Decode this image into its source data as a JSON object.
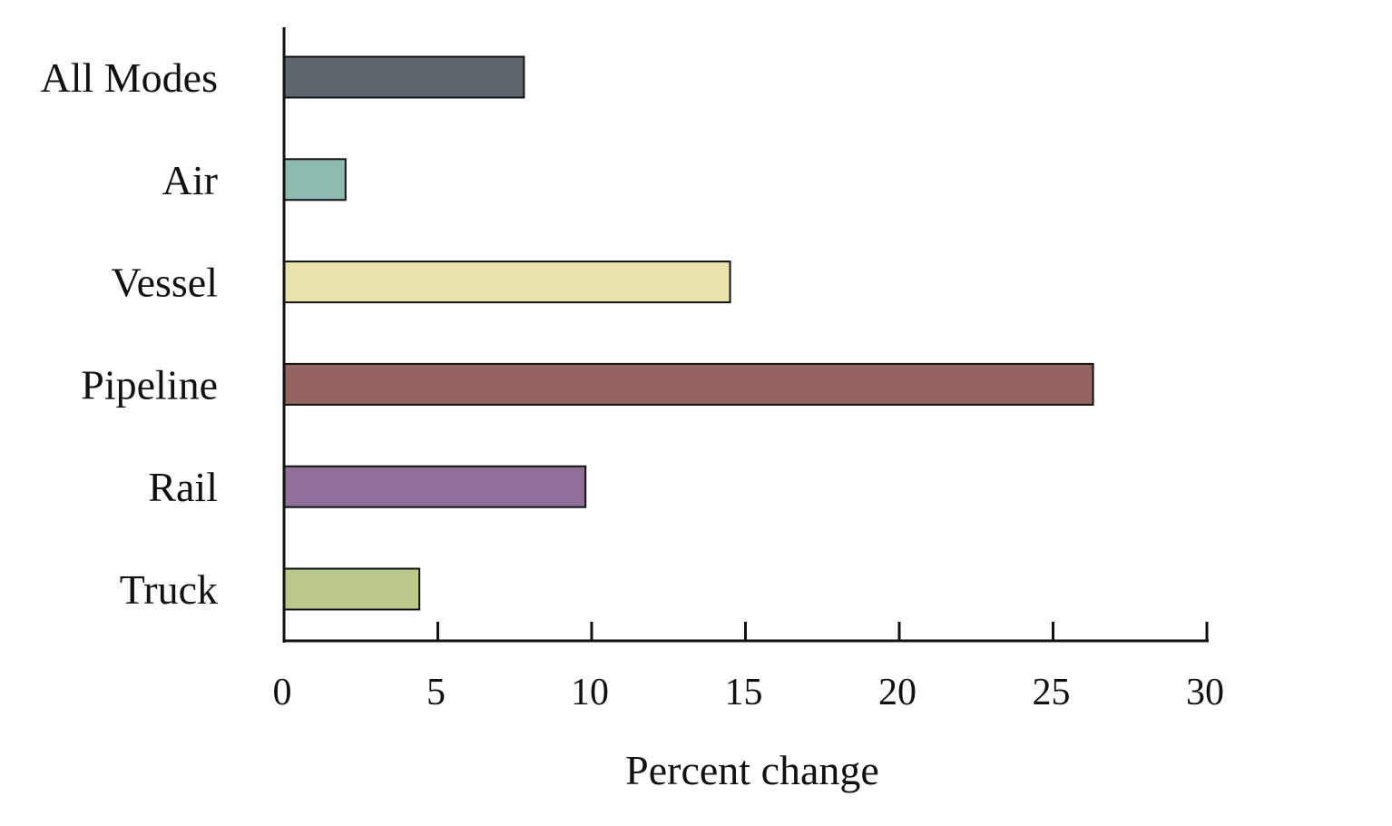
{
  "chart_data": {
    "type": "bar",
    "orientation": "horizontal",
    "categories": [
      "All Modes",
      "Air",
      "Vessel",
      "Pipeline",
      "Rail",
      "Truck"
    ],
    "values": [
      7.8,
      2.0,
      14.5,
      26.3,
      9.8,
      4.4
    ],
    "colors": [
      "#5e666d",
      "#8fbcb2",
      "#e8e2ab",
      "#946560",
      "#8f6f98",
      "#b8c98a"
    ],
    "xlabel": "Percent change",
    "ylabel": "",
    "title": "",
    "xlim": [
      0,
      30
    ],
    "xticks": [
      0,
      5,
      10,
      15,
      20,
      25,
      30
    ],
    "grid": false,
    "legend": "none"
  }
}
